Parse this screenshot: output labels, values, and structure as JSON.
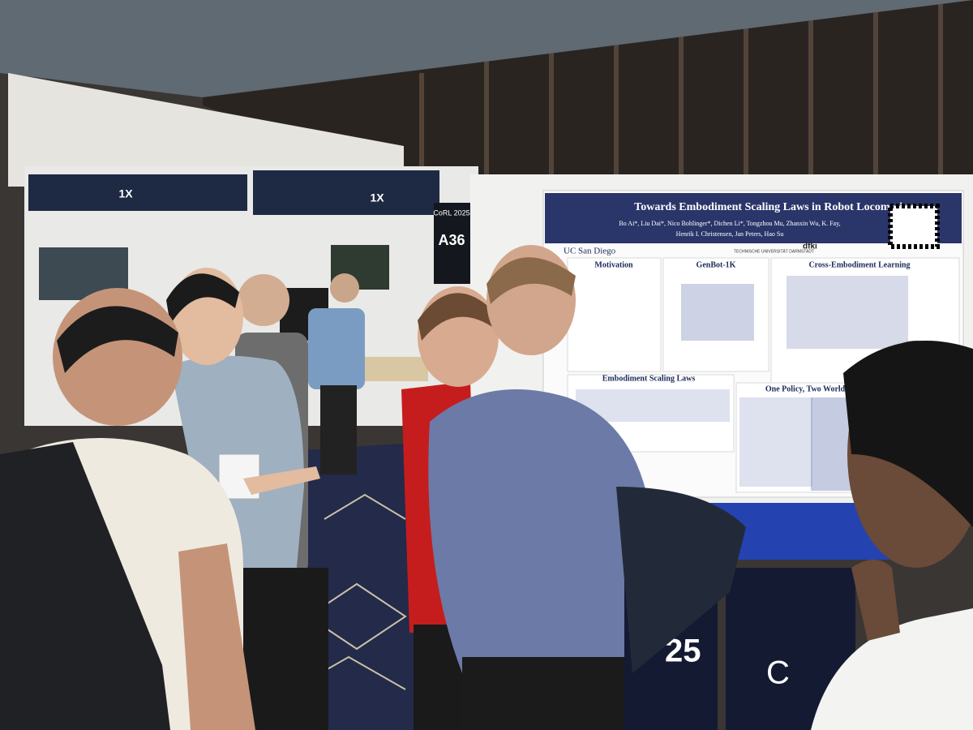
{
  "booth_signs": [
    "1X",
    "1X"
  ],
  "booth_marker": {
    "event": "CoRL 2025",
    "number": "A36"
  },
  "poster": {
    "title": "Towards Embodiment Scaling Laws in Robot Locomotion",
    "authors": [
      "Bo Ai*, Liu Dai*, Nico Bohlinger*, Dichen Li*, Tongzhou Mu, Zhanxin Wu, K. Fay,",
      "Henrik I. Christensen, Jan Peters, Hao Su"
    ],
    "affiliations": [
      "UC San Diego",
      "TECHNISCHE UNIVERSITÄT DARMSTADT",
      "dfki"
    ],
    "sections": [
      "Motivation",
      "GenBot-1K",
      "Cross-Embodiment Learning",
      "Embodiment Scaling Laws",
      "One Policy, Two Worlds"
    ]
  },
  "banner": [
    "25",
    "C"
  ]
}
